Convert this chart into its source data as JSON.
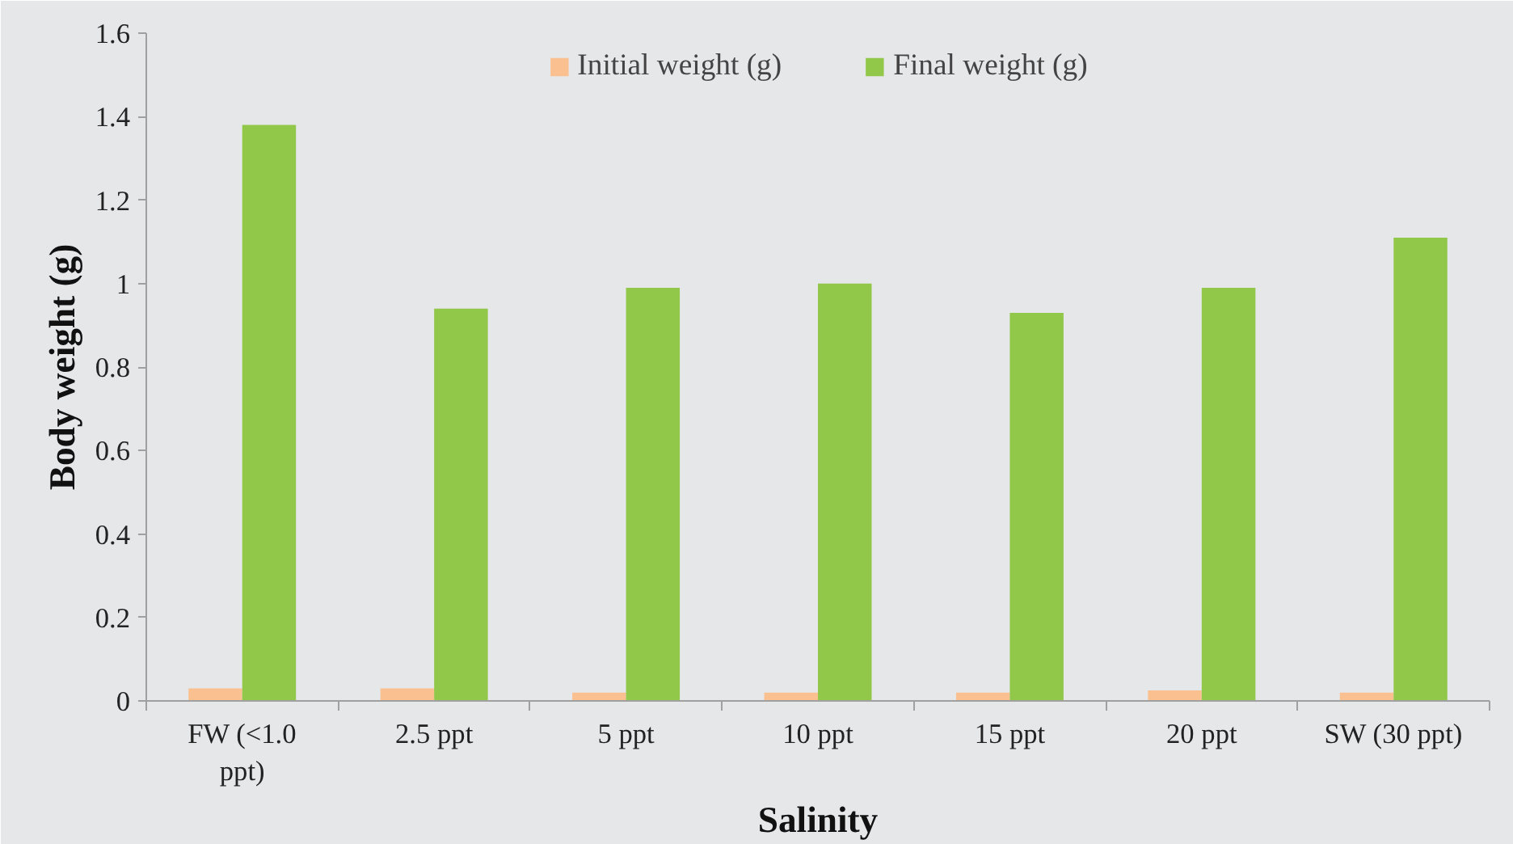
{
  "chart_data": {
    "type": "bar",
    "xlabel": "Salinity",
    "ylabel": "Body weight (g)",
    "categories": [
      "FW (<1.0 ppt)",
      "2.5 ppt",
      "5 ppt",
      "10 ppt",
      "15 ppt",
      "20 ppt",
      "SW (30 ppt)"
    ],
    "series": [
      {
        "name": "Initial weight (g)",
        "color": "#fac090",
        "values": [
          0.03,
          0.03,
          0.02,
          0.02,
          0.02,
          0.025,
          0.02
        ]
      },
      {
        "name": "Final weight (g)",
        "color": "#92c84a",
        "values": [
          1.38,
          0.94,
          0.99,
          1.0,
          0.93,
          0.99,
          1.11
        ]
      }
    ],
    "ylim": [
      0,
      1.6
    ],
    "yticks": [
      0,
      0.2,
      0.4,
      0.6,
      0.8,
      1,
      1.2,
      1.4,
      1.6
    ],
    "legend": "top"
  }
}
